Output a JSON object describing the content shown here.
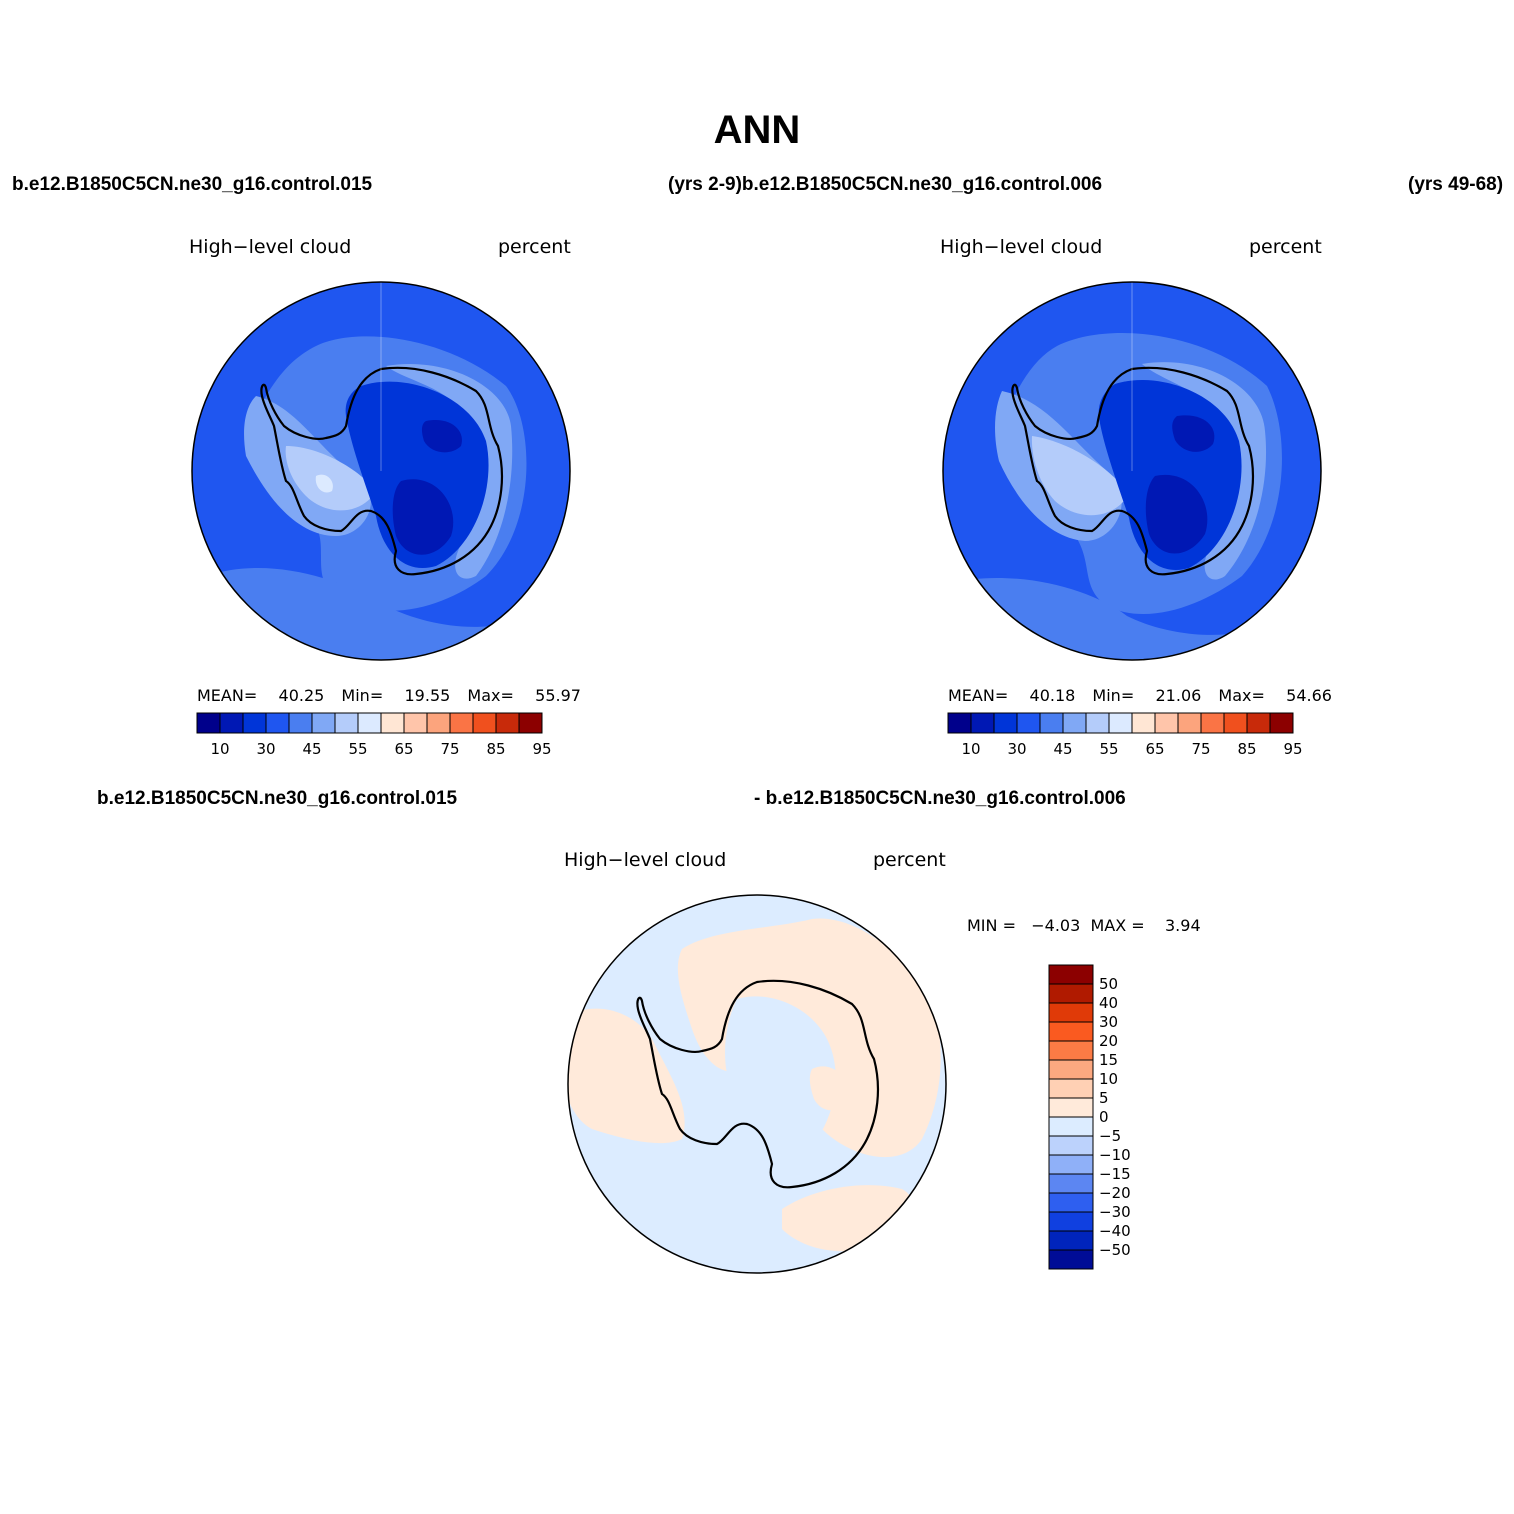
{
  "title": "ANN",
  "top_panels": {
    "case_left": "b.e12.B1850C5CN.ne30_g16.control.015",
    "years_left_and_case_right": "(yrs 2-9)b.e12.B1850C5CN.ne30_g16.control.006",
    "years_right": "(yrs 49-68)"
  },
  "panels": [
    {
      "variable": "High−level cloud",
      "units": "percent",
      "stats": {
        "mean_label": "MEAN=",
        "mean": "40.25",
        "min_label": "Min=",
        "min": "19.55",
        "max_label": "Max=",
        "max": "55.97"
      }
    },
    {
      "variable": "High−level cloud",
      "units": "percent",
      "stats": {
        "mean_label": "MEAN=",
        "mean": "40.18",
        "min_label": "Min=",
        "min": "21.06",
        "max_label": "Max=",
        "max": "54.66"
      }
    }
  ],
  "colorbar_main": {
    "colors": [
      "#00008b",
      "#0018b4",
      "#0035d8",
      "#1f56f0",
      "#4a7ef0",
      "#80a8f5",
      "#b4ccfa",
      "#dceaff",
      "#ffe6d4",
      "#ffc5aa",
      "#fca47d",
      "#fa7445",
      "#f0501e",
      "#c82a0a",
      "#8c0000"
    ],
    "tick_labels": [
      "10",
      "30",
      "45",
      "55",
      "65",
      "75",
      "85",
      "95"
    ]
  },
  "diff_panel": {
    "label_left": "b.e12.B1850C5CN.ne30_g16.control.015",
    "label_right": "- b.e12.B1850C5CN.ne30_g16.control.006",
    "variable": "High−level cloud",
    "units": "percent",
    "minmax_text": "MIN =   −4.03  MAX =    3.94"
  },
  "colorbar_diff": {
    "colors": [
      "#8c0000",
      "#b01a00",
      "#e03a08",
      "#fa5a20",
      "#fc7b45",
      "#fca880",
      "#ffd0b4",
      "#ffeada",
      "#dcecff",
      "#bcd2fc",
      "#8fb0f8",
      "#5c86f2",
      "#2e5ff0",
      "#1040e0",
      "#0024bc",
      "#000c96"
    ],
    "tick_labels": [
      "50",
      "40",
      "30",
      "20",
      "15",
      "10",
      "5",
      "0",
      "−5",
      "−10",
      "−15",
      "−20",
      "−30",
      "−40",
      "−50"
    ]
  },
  "map_colors": {
    "panel1": {
      "ocean": "#1f56f0",
      "ring": "#4a7ef0",
      "ring2": "#80a8f5",
      "coast": "#b4ccfa",
      "interior": "#0035d8",
      "interior_dark": "#0018b4",
      "highlight": "#dceaff"
    },
    "panel2": {
      "ocean": "#1f56f0",
      "ring": "#4a7ef0",
      "ring2": "#80a8f5",
      "coast": "#b4ccfa",
      "interior": "#0035d8",
      "interior_dark": "#0018b4",
      "highlight": "#dceaff"
    },
    "diff": {
      "negative": "#dcecff",
      "positive": "#ffeada"
    },
    "outline": "#000000"
  }
}
